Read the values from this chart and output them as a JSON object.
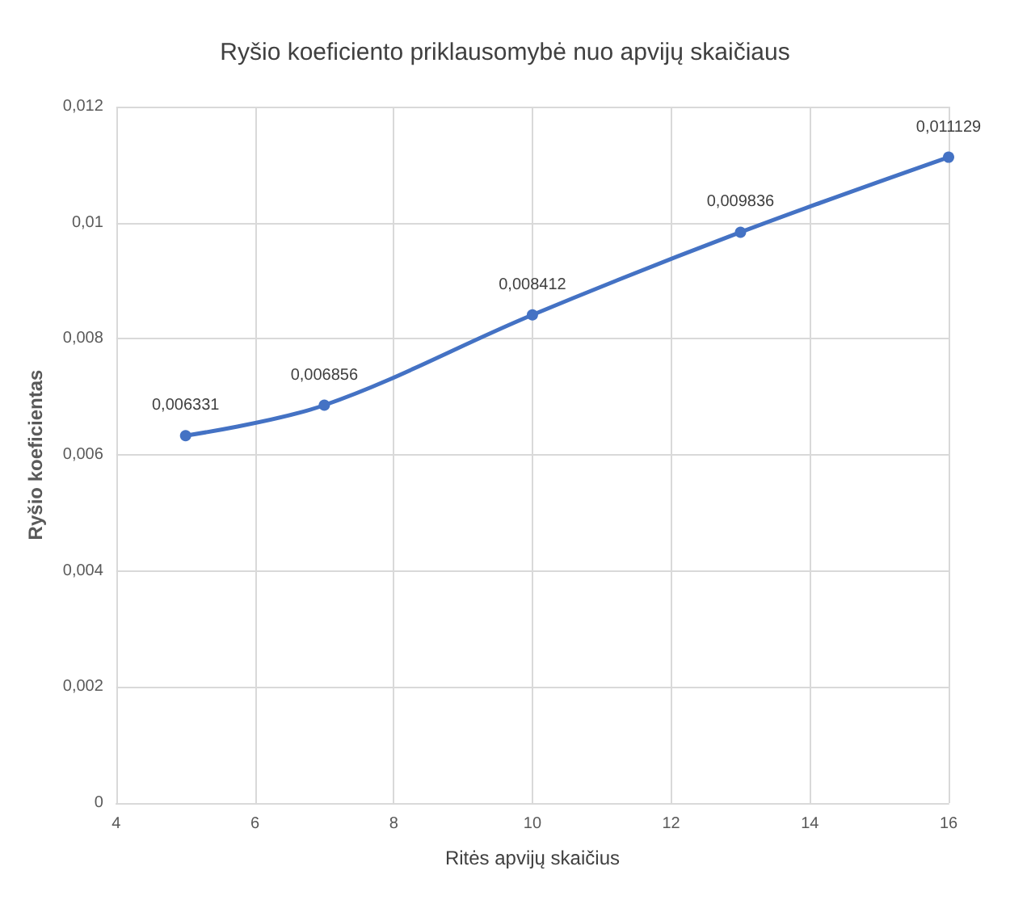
{
  "chart_data": {
    "type": "line",
    "title": "Ryšio koeficiento priklausomybė nuo apvijų skaičiaus",
    "xlabel": "Ritės apvijų skaičius",
    "ylabel": "Ryšio koeficientas",
    "x": [
      5,
      7,
      10,
      13,
      16
    ],
    "series": [
      {
        "color": "#4472c4",
        "values": [
          0.006331,
          0.006856,
          0.008412,
          0.009836,
          0.011129
        ],
        "value_labels": [
          "0,006331",
          "0,006856",
          "0,008412",
          "0,009836",
          "0,011129"
        ]
      }
    ],
    "xlim": [
      4,
      16
    ],
    "xticks": [
      4,
      6,
      8,
      10,
      12,
      14,
      16
    ],
    "ylim": [
      0,
      0.012
    ],
    "yticks": [
      0,
      {
        "value": 0.002,
        "label": "0,002"
      },
      {
        "value": 0.004,
        "label": "0,004"
      },
      {
        "value": 0.006,
        "label": "0,006"
      },
      {
        "value": 0.008,
        "label": "0,008"
      },
      {
        "value": 0.01,
        "label": "0,01"
      },
      {
        "value": 0.012,
        "label": "0,012"
      }
    ],
    "grid": true,
    "marker": "circle",
    "line_style": "solid"
  }
}
